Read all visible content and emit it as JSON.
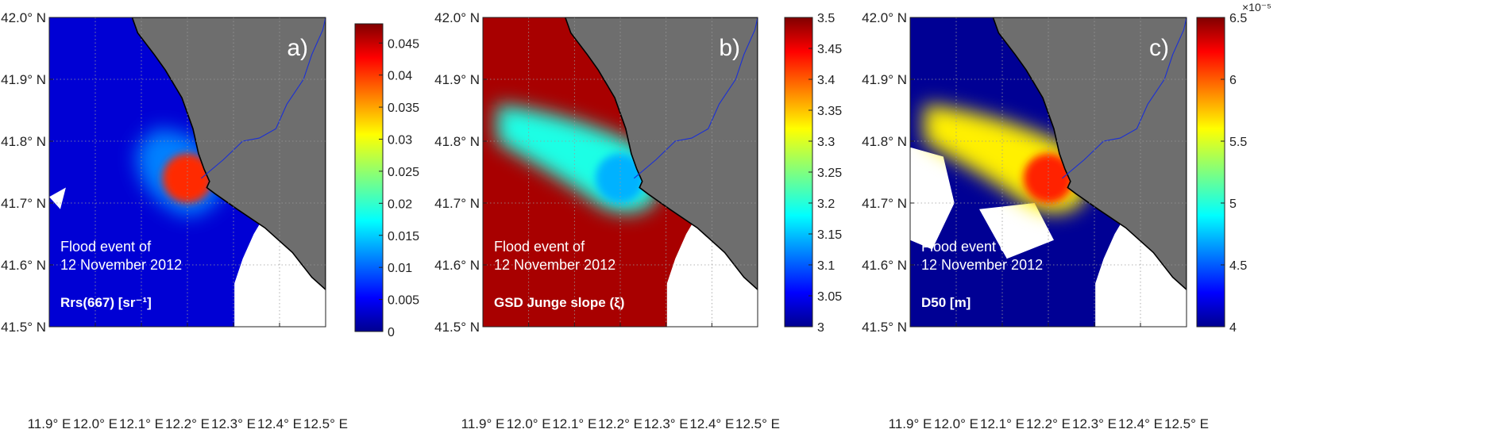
{
  "figure": {
    "lat_ticks": [
      "42.0° N",
      "41.9° N",
      "41.8° N",
      "41.7° N",
      "41.6° N",
      "41.5° N"
    ],
    "lon_ticks": [
      "11.9° E",
      "12.0° E",
      "12.1° E",
      "12.2° E",
      "12.3° E",
      "12.4° E",
      "12.5° E"
    ]
  },
  "chart_data": [
    {
      "type": "heatmap",
      "panel_label": "a)",
      "event_line1": "Flood event of",
      "event_line2": "12 November 2012",
      "variable_label": "Rrs(667) [sr⁻¹]",
      "colorbar_ticks": [
        "0.045",
        "0.04",
        "0.035",
        "0.03",
        "0.025",
        "0.02",
        "0.015",
        "0.01",
        "0.005",
        "0"
      ],
      "colorbar_range": [
        0,
        0.048
      ],
      "lon_range": [
        11.9,
        12.5
      ],
      "lat_range": [
        41.5,
        42.0
      ],
      "background_value": 0.004,
      "plume_value": 0.012,
      "plume_core_value": 0.04
    },
    {
      "type": "heatmap",
      "panel_label": "b)",
      "event_line1": "Flood event of",
      "event_line2": "12 November 2012",
      "variable_label": "GSD Junge slope (ξ)",
      "colorbar_ticks": [
        "3.5",
        "3.45",
        "3.4",
        "3.35",
        "3.3",
        "3.25",
        "3.2",
        "3.15",
        "3.1",
        "3.05",
        "3"
      ],
      "colorbar_range": [
        3.0,
        3.5
      ],
      "lon_range": [
        11.9,
        12.5
      ],
      "lat_range": [
        41.5,
        42.0
      ],
      "background_value": 3.48,
      "plume_value": 3.2,
      "plume_core_value": 3.15
    },
    {
      "type": "heatmap",
      "panel_label": "c)",
      "event_line1": "Flood event of",
      "event_line2": "12 November 2012",
      "variable_label": "D50 [m]",
      "colorbar_ticks": [
        "6.5",
        "6",
        "5.5",
        "5",
        "4.5",
        "4"
      ],
      "colorbar_exponent": "×10⁻⁵",
      "colorbar_range": [
        4.0,
        6.5
      ],
      "lon_range": [
        11.9,
        12.5
      ],
      "lat_range": [
        41.5,
        42.0
      ],
      "background_value": 4.05,
      "plume_value": 5.6,
      "plume_core_value": 6.1
    }
  ]
}
